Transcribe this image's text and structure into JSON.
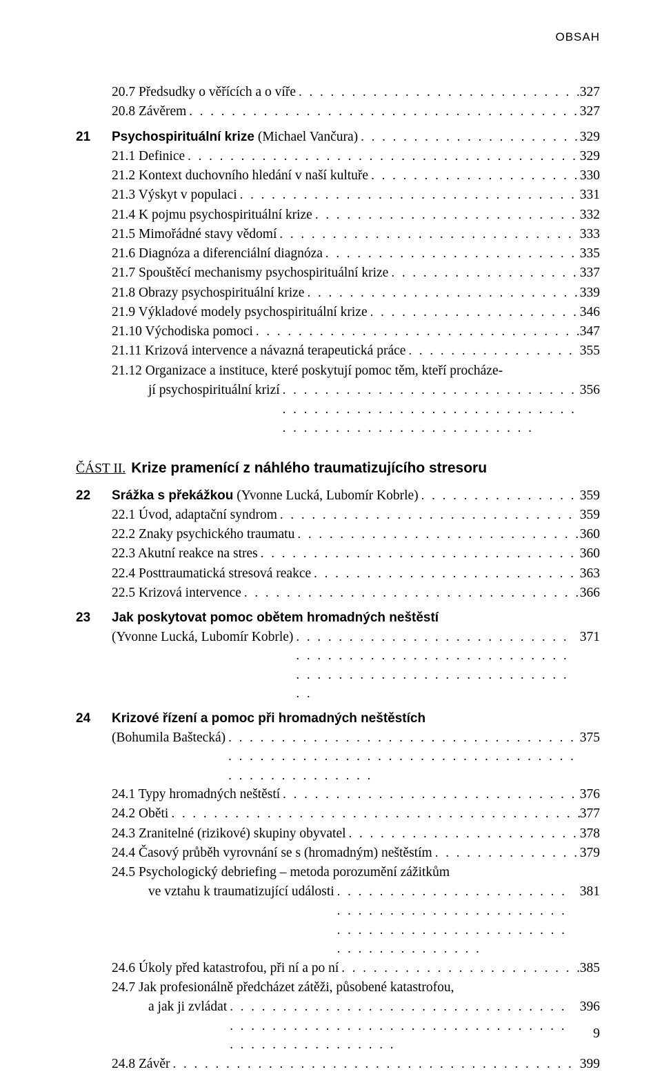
{
  "header": "OBSAH",
  "footer_page": "9",
  "part": {
    "label": "ČÁST II.",
    "title": "Krize pramenící z náhlého traumatizujícího stresoru"
  },
  "lines": [
    {
      "kind": "sub",
      "label": "20.7 Předsudky o věřících a o víře",
      "page": "327"
    },
    {
      "kind": "sub",
      "label": "20.8 Závěrem",
      "page": "327"
    },
    {
      "kind": "chapter",
      "num": "21",
      "title": "Psychospirituální krize",
      "author": "(Michael Vančura)",
      "page": "329"
    },
    {
      "kind": "sub",
      "label": "21.1 Definice",
      "page": "329"
    },
    {
      "kind": "sub",
      "label": "21.2 Kontext duchovního hledání v naší kultuře",
      "page": "330"
    },
    {
      "kind": "sub",
      "label": "21.3 Výskyt v populaci",
      "page": "331"
    },
    {
      "kind": "sub",
      "label": "21.4 K pojmu psychospirituální krize",
      "page": "332"
    },
    {
      "kind": "sub",
      "label": "21.5 Mimořádné stavy vědomí",
      "page": "333"
    },
    {
      "kind": "sub",
      "label": "21.6 Diagnóza a diferenciální diagnóza",
      "page": "335"
    },
    {
      "kind": "sub",
      "label": "21.7 Spouštěcí mechanismy psychospirituální krize",
      "page": "337"
    },
    {
      "kind": "sub",
      "label": "21.8 Obrazy psychospirituální krize",
      "page": "339"
    },
    {
      "kind": "sub",
      "label": "21.9 Výkladové modely psychospirituální krize",
      "page": "346"
    },
    {
      "kind": "sub",
      "label": "21.10 Východiska pomoci",
      "page": "347"
    },
    {
      "kind": "sub",
      "label": "21.11 Krizová intervence a návazná terapeutická práce",
      "page": "355"
    },
    {
      "kind": "sub-multi",
      "label1": "21.12 Organizace a instituce, které poskytují pomoc těm, kteří procháze-",
      "label2": "jí psychospirituální krizí",
      "page": "356"
    }
  ],
  "part2_lines": [
    {
      "kind": "chapter",
      "num": "22",
      "title": "Srážka s překážkou",
      "author": "(Yvonne Lucká, Lubomír Kobrle)",
      "page": "359"
    },
    {
      "kind": "sub",
      "label": "22.1 Úvod, adaptační syndrom",
      "page": "359"
    },
    {
      "kind": "sub",
      "label": "22.2 Znaky psychického traumatu",
      "page": "360"
    },
    {
      "kind": "sub",
      "label": "22.3 Akutní reakce na stres",
      "page": "360"
    },
    {
      "kind": "sub",
      "label": "22.4 Posttraumatická stresová reakce",
      "page": "363"
    },
    {
      "kind": "sub",
      "label": "22.5 Krizová intervence",
      "page": "366"
    },
    {
      "kind": "chapter-multi",
      "num": "23",
      "title": "Jak poskytovat pomoc obětem hromadných neštěstí",
      "author2": "(Yvonne Lucká, Lubomír Kobrle)",
      "page": "371"
    },
    {
      "kind": "chapter-multi",
      "num": "24",
      "title": "Krizové řízení a pomoc při hromadných neštěstích",
      "author2": "(Bohumila Baštecká)",
      "page": "375"
    },
    {
      "kind": "sub",
      "label": "24.1 Typy hromadných neštěstí",
      "page": "376"
    },
    {
      "kind": "sub",
      "label": "24.2 Oběti",
      "page": "377"
    },
    {
      "kind": "sub",
      "label": "24.3 Zranitelné (rizikové) skupiny obyvatel",
      "page": "378"
    },
    {
      "kind": "sub",
      "label": "24.4 Časový průběh vyrovnání se s (hromadným) neštěstím",
      "page": "379"
    },
    {
      "kind": "sub-multi",
      "label1": "24.5 Psychologický debriefing – metoda porozumění zážitkům",
      "label2": "ve vztahu k traumatizující události",
      "page": "381"
    },
    {
      "kind": "sub",
      "label": "24.6 Úkoly před katastrofou, při ní a po ní",
      "page": "385"
    },
    {
      "kind": "sub-multi",
      "label1": "24.7 Jak profesionálně předcházet zátěži, působené katastrofou,",
      "label2": "a jak ji zvládat",
      "page": "396"
    },
    {
      "kind": "sub",
      "label": "24.8 Závěr",
      "page": "399"
    }
  ]
}
